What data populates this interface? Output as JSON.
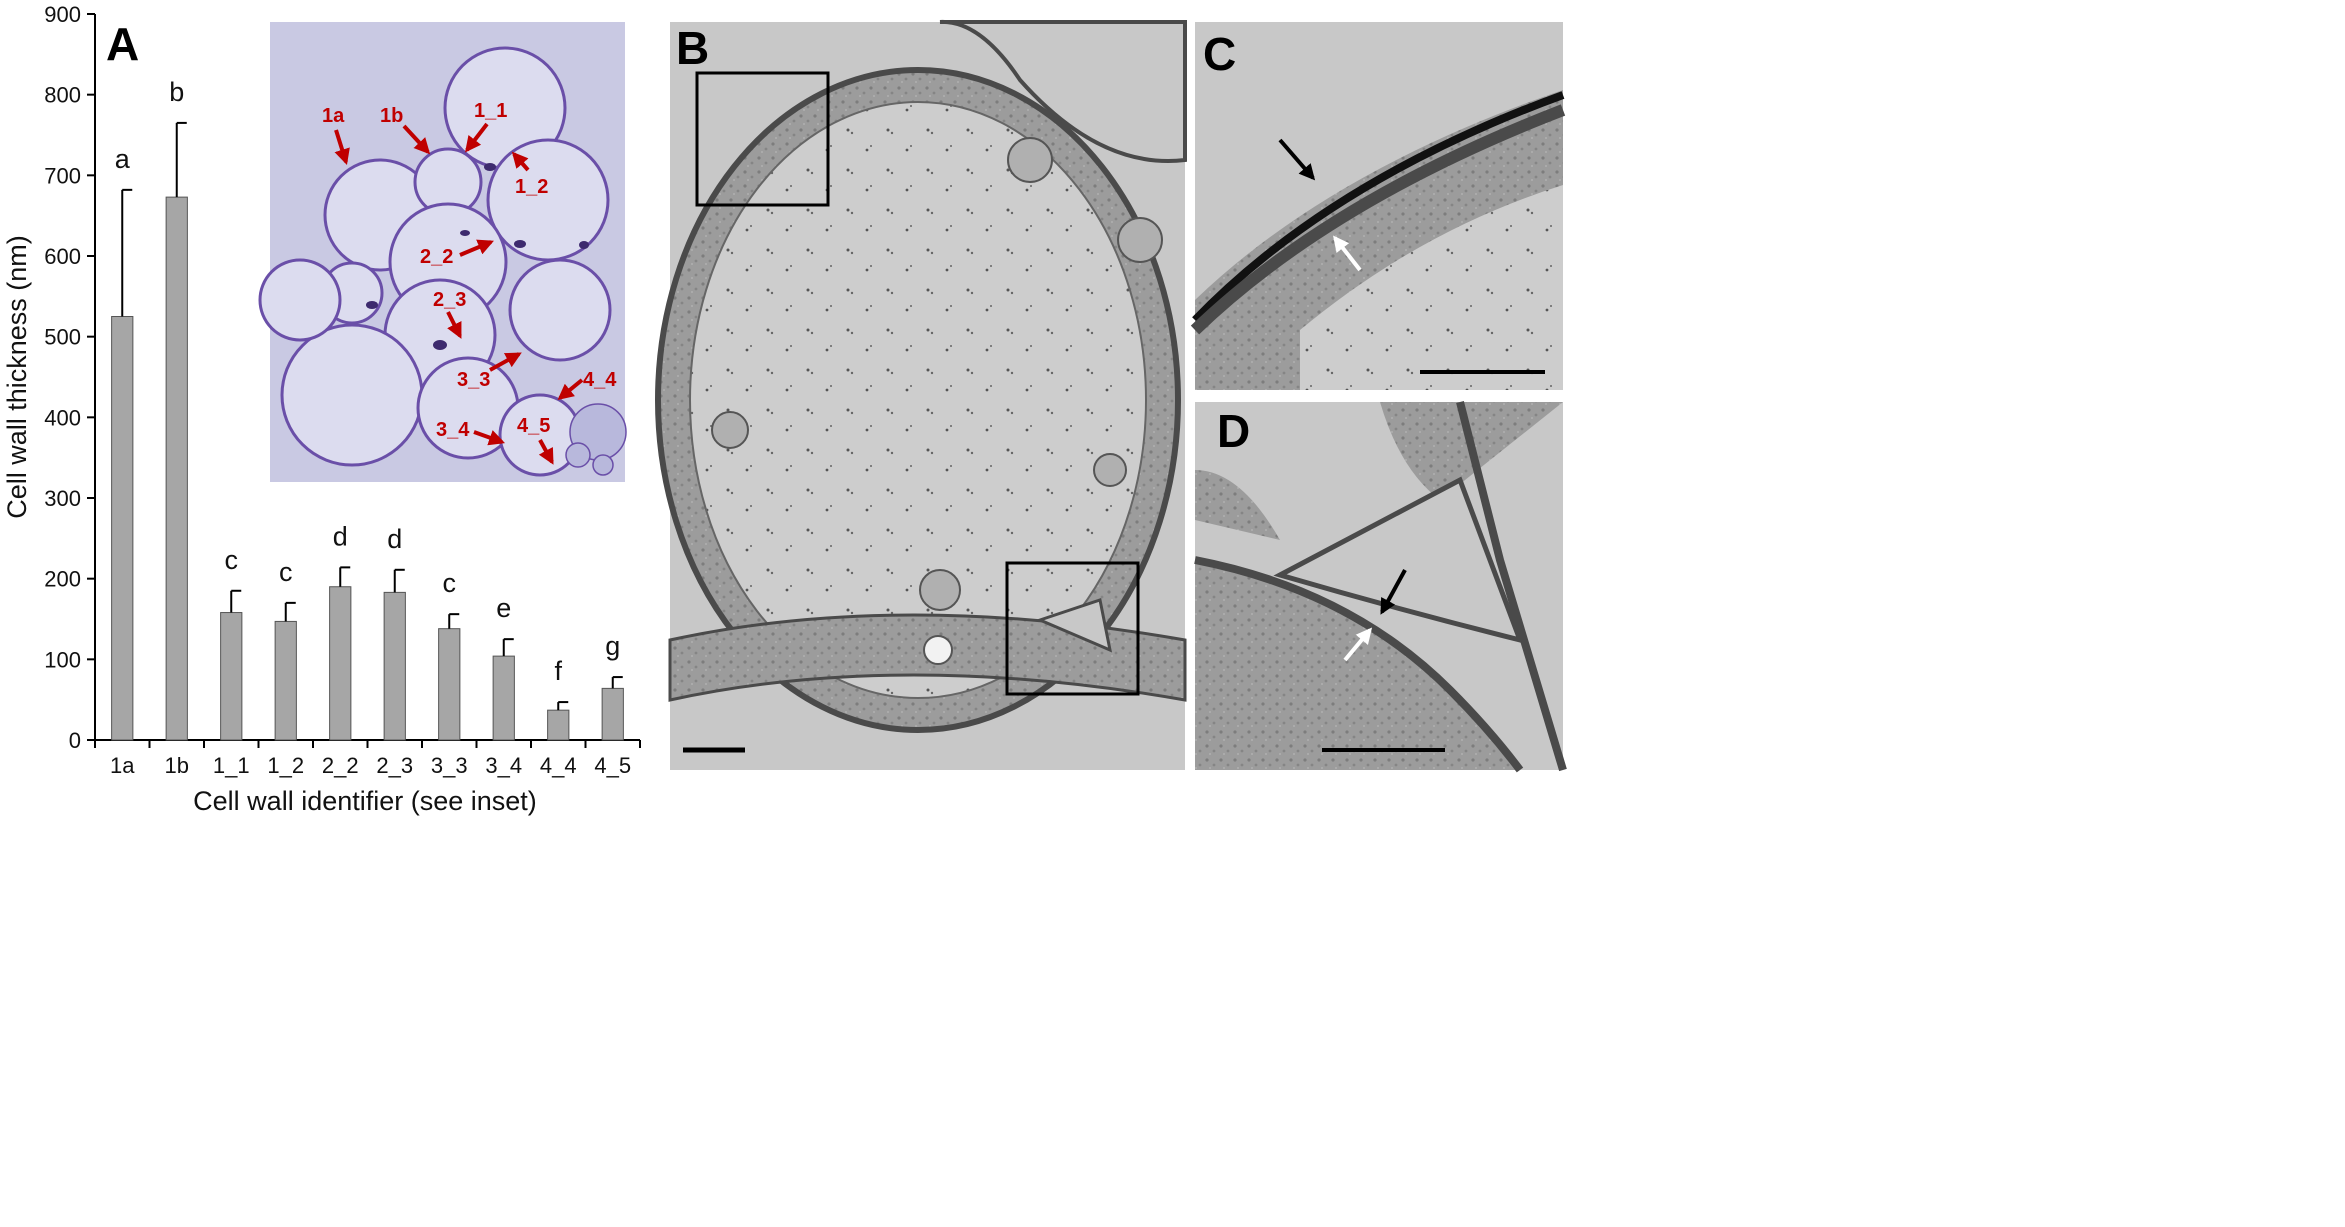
{
  "panels": {
    "a": "A",
    "b": "B",
    "c": "C",
    "d": "D"
  },
  "chart_data": {
    "type": "bar",
    "categories": [
      "1a",
      "1b",
      "1_1",
      "1_2",
      "2_2",
      "2_3",
      "3_3",
      "3_4",
      "4_4",
      "4_5"
    ],
    "values": [
      525,
      673,
      158,
      147,
      190,
      183,
      138,
      104,
      37,
      64
    ],
    "errors": [
      157,
      92,
      27,
      23,
      24,
      28,
      18,
      21,
      10,
      14
    ],
    "significance": [
      "a",
      "b",
      "c",
      "c",
      "d",
      "d",
      "c",
      "e",
      "f",
      "g"
    ],
    "xlabel": "Cell wall identifier (see inset)",
    "ylabel": "Cell wall thickness (nm)",
    "ylim": [
      0,
      900
    ],
    "yticks": [
      0,
      100,
      200,
      300,
      400,
      500,
      600,
      700,
      800,
      900
    ],
    "bar_color": "#a6a6a6",
    "grid": false
  },
  "inset": {
    "labels": [
      "1a",
      "1b",
      "1_1",
      "1_2",
      "2_2",
      "2_3",
      "3_3",
      "3_4",
      "4_4",
      "4_5"
    ],
    "label_color": "#c00000",
    "stain_color": "#6a4fa8",
    "background_color": "#c9c9e3"
  },
  "micrographs": {
    "background_color": "#c8c8c8",
    "wall_color": "#555555",
    "scale_bar_color": "#000000"
  }
}
